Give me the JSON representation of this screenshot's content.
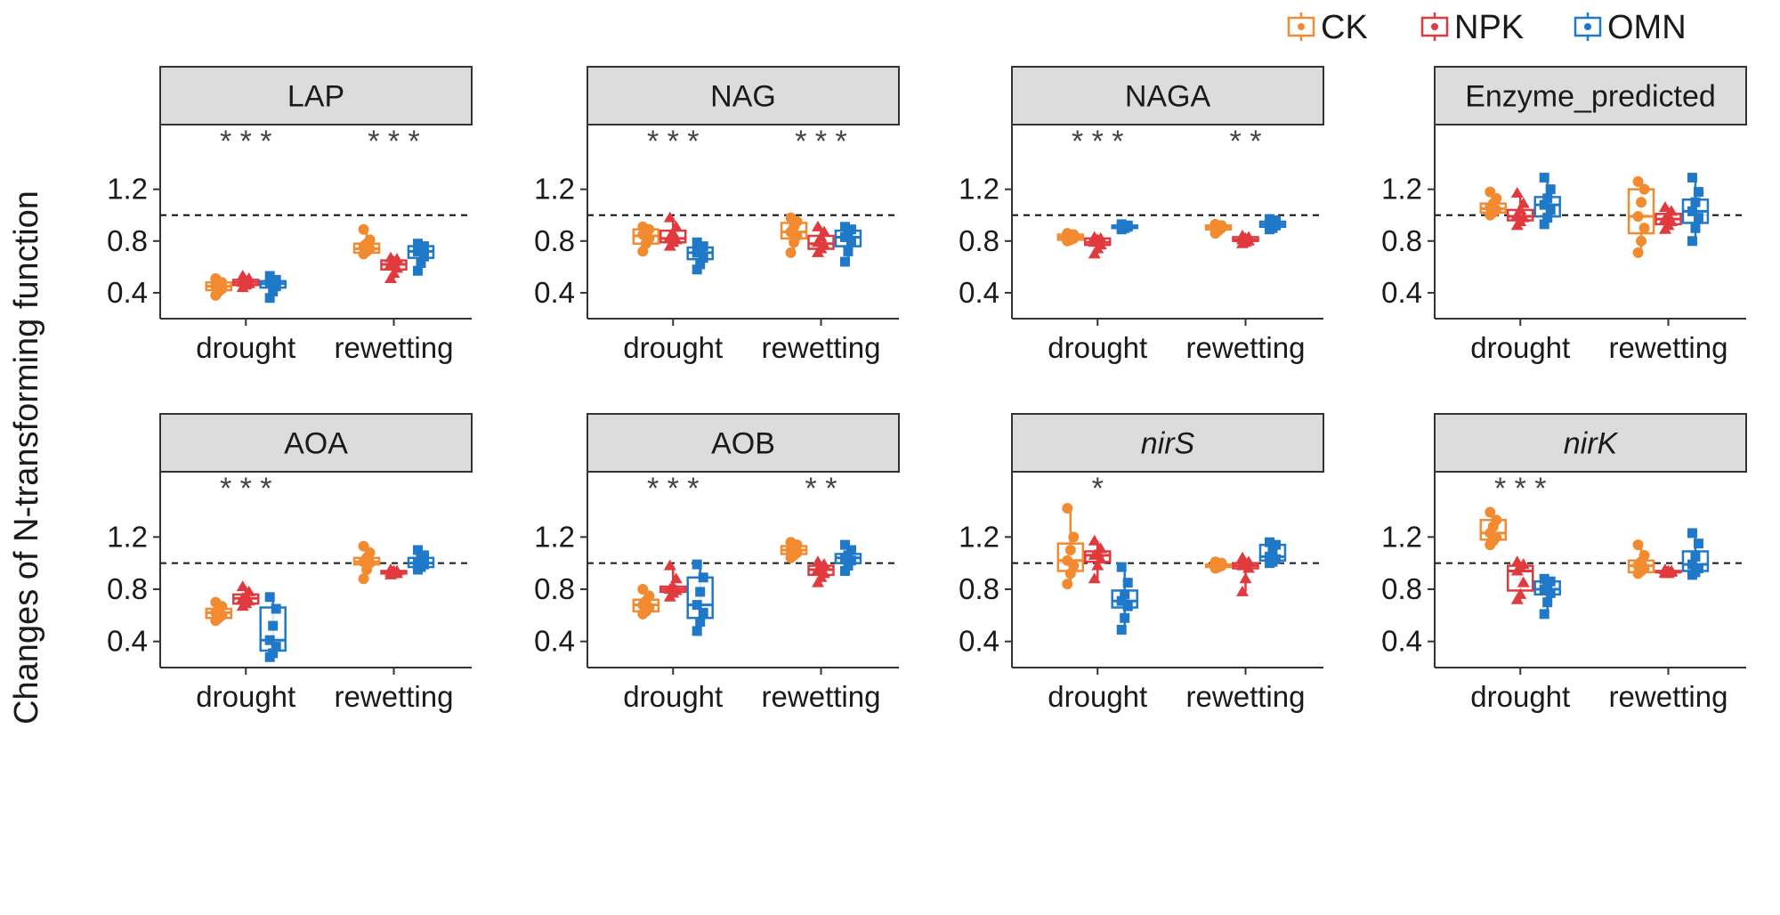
{
  "ylabel": "Changes of N-transforming function",
  "legend": {
    "placement": "top-right",
    "items": [
      {
        "label": "CK",
        "color": "#F28A30"
      },
      {
        "label": "NPK",
        "color": "#E03A3E"
      },
      {
        "label": "OMN",
        "color": "#1F78C8"
      }
    ]
  },
  "chart_data": {
    "type": "box",
    "layout": "facet grid, 2 rows x 4 columns",
    "categories": [
      "drought",
      "rewetting"
    ],
    "groups": [
      "CK",
      "NPK",
      "OMN"
    ],
    "yticks": [
      "0.4",
      "0.8",
      "1.2"
    ],
    "reference_line": 1.0,
    "ylim": [
      0.2,
      1.7
    ],
    "panels": [
      {
        "title": "LAP",
        "italic": false,
        "significance": [
          "* * *",
          "* * *"
        ],
        "boxes": [
          [
            {
              "min": 0.38,
              "q1": 0.42,
              "median": 0.45,
              "q3": 0.48,
              "max": 0.51,
              "points": [
                0.38,
                0.41,
                0.43,
                0.45,
                0.47,
                0.48,
                0.51
              ]
            },
            {
              "min": 0.44,
              "q1": 0.46,
              "median": 0.48,
              "q3": 0.5,
              "max": 0.53,
              "points": [
                0.44,
                0.46,
                0.47,
                0.48,
                0.49,
                0.51,
                0.53
              ]
            },
            {
              "min": 0.36,
              "q1": 0.44,
              "median": 0.47,
              "q3": 0.49,
              "max": 0.53,
              "points": [
                0.36,
                0.41,
                0.45,
                0.47,
                0.48,
                0.5,
                0.53
              ]
            }
          ],
          [
            {
              "min": 0.7,
              "q1": 0.71,
              "median": 0.74,
              "q3": 0.78,
              "max": 0.89,
              "points": [
                0.7,
                0.72,
                0.74,
                0.76,
                0.78,
                0.81,
                0.89
              ]
            },
            {
              "min": 0.51,
              "q1": 0.58,
              "median": 0.62,
              "q3": 0.65,
              "max": 0.67,
              "points": [
                0.51,
                0.55,
                0.59,
                0.62,
                0.64,
                0.66,
                0.67
              ]
            },
            {
              "min": 0.57,
              "q1": 0.67,
              "median": 0.72,
              "q3": 0.76,
              "max": 0.78,
              "points": [
                0.57,
                0.63,
                0.68,
                0.72,
                0.74,
                0.76,
                0.78
              ]
            }
          ]
        ]
      },
      {
        "title": "NAG",
        "italic": false,
        "significance": [
          "* * *",
          "* * *"
        ],
        "boxes": [
          [
            {
              "min": 0.72,
              "q1": 0.78,
              "median": 0.84,
              "q3": 0.89,
              "max": 0.91,
              "points": [
                0.72,
                0.78,
                0.82,
                0.85,
                0.88,
                0.89,
                0.91
              ]
            },
            {
              "min": 0.76,
              "q1": 0.79,
              "median": 0.82,
              "q3": 0.88,
              "max": 0.98,
              "points": [
                0.76,
                0.79,
                0.81,
                0.83,
                0.86,
                0.91,
                0.98
              ]
            },
            {
              "min": 0.58,
              "q1": 0.66,
              "median": 0.71,
              "q3": 0.75,
              "max": 0.79,
              "points": [
                0.58,
                0.62,
                0.67,
                0.71,
                0.73,
                0.76,
                0.79
              ]
            }
          ],
          [
            {
              "min": 0.71,
              "q1": 0.82,
              "median": 0.87,
              "q3": 0.94,
              "max": 0.98,
              "points": [
                0.71,
                0.79,
                0.84,
                0.87,
                0.91,
                0.95,
                0.98
              ]
            },
            {
              "min": 0.71,
              "q1": 0.74,
              "median": 0.78,
              "q3": 0.84,
              "max": 0.91,
              "points": [
                0.71,
                0.74,
                0.77,
                0.79,
                0.83,
                0.87,
                0.91
              ]
            },
            {
              "min": 0.64,
              "q1": 0.76,
              "median": 0.83,
              "q3": 0.88,
              "max": 0.91,
              "points": [
                0.64,
                0.72,
                0.79,
                0.83,
                0.86,
                0.89,
                0.91
              ]
            }
          ]
        ]
      },
      {
        "title": "NAGA",
        "italic": false,
        "significance": [
          "* * *",
          "* *"
        ],
        "boxes": [
          [
            {
              "min": 0.8,
              "q1": 0.81,
              "median": 0.83,
              "q3": 0.85,
              "max": 0.86,
              "points": [
                0.8,
                0.81,
                0.82,
                0.83,
                0.84,
                0.85,
                0.86
              ]
            },
            {
              "min": 0.7,
              "q1": 0.77,
              "median": 0.79,
              "q3": 0.82,
              "max": 0.83,
              "points": [
                0.7,
                0.74,
                0.77,
                0.79,
                0.81,
                0.82,
                0.83
              ]
            },
            {
              "min": 0.89,
              "q1": 0.9,
              "median": 0.91,
              "q3": 0.92,
              "max": 0.93,
              "points": [
                0.89,
                0.9,
                0.91,
                0.91,
                0.92,
                0.92,
                0.93
              ]
            }
          ],
          [
            {
              "min": 0.86,
              "q1": 0.89,
              "median": 0.91,
              "q3": 0.92,
              "max": 0.93,
              "points": [
                0.86,
                0.88,
                0.9,
                0.91,
                0.92,
                0.92,
                0.93
              ]
            },
            {
              "min": 0.78,
              "q1": 0.8,
              "median": 0.81,
              "q3": 0.83,
              "max": 0.84,
              "points": [
                0.78,
                0.79,
                0.8,
                0.81,
                0.82,
                0.83,
                0.84
              ]
            },
            {
              "min": 0.89,
              "q1": 0.91,
              "median": 0.93,
              "q3": 0.95,
              "max": 0.97,
              "points": [
                0.89,
                0.9,
                0.92,
                0.93,
                0.94,
                0.96,
                0.97
              ]
            }
          ]
        ]
      },
      {
        "title": "Enzyme_predicted",
        "italic": false,
        "significance": [
          "",
          ""
        ],
        "boxes": [
          [
            {
              "min": 1.0,
              "q1": 1.02,
              "median": 1.05,
              "q3": 1.09,
              "max": 1.18,
              "points": [
                1.0,
                1.02,
                1.04,
                1.06,
                1.09,
                1.13,
                1.18
              ]
            },
            {
              "min": 0.92,
              "q1": 0.96,
              "median": 0.99,
              "q3": 1.04,
              "max": 1.17,
              "points": [
                0.92,
                0.95,
                0.98,
                1.0,
                1.04,
                1.09,
                1.17
              ]
            },
            {
              "min": 0.93,
              "q1": 0.99,
              "median": 1.08,
              "q3": 1.14,
              "max": 1.29,
              "points": [
                0.93,
                0.98,
                1.04,
                1.08,
                1.13,
                1.2,
                1.29
              ]
            }
          ],
          [
            {
              "min": 0.71,
              "q1": 0.86,
              "median": 0.99,
              "q3": 1.2,
              "max": 1.26,
              "points": [
                0.71,
                0.8,
                0.9,
                0.99,
                1.1,
                1.2,
                1.26
              ]
            },
            {
              "min": 0.89,
              "q1": 0.93,
              "median": 0.97,
              "q3": 1.01,
              "max": 1.06,
              "points": [
                0.89,
                0.92,
                0.95,
                0.97,
                1.0,
                1.03,
                1.06
              ]
            },
            {
              "min": 0.8,
              "q1": 0.94,
              "median": 1.03,
              "q3": 1.12,
              "max": 1.29,
              "points": [
                0.8,
                0.9,
                0.98,
                1.03,
                1.1,
                1.18,
                1.29
              ]
            }
          ]
        ]
      },
      {
        "title": "AOA",
        "italic": false,
        "significance": [
          "* * *",
          ""
        ],
        "boxes": [
          [
            {
              "min": 0.56,
              "q1": 0.58,
              "median": 0.62,
              "q3": 0.65,
              "max": 0.7,
              "points": [
                0.56,
                0.58,
                0.6,
                0.62,
                0.64,
                0.67,
                0.7
              ]
            },
            {
              "min": 0.67,
              "q1": 0.69,
              "median": 0.73,
              "q3": 0.76,
              "max": 0.82,
              "points": [
                0.67,
                0.69,
                0.71,
                0.73,
                0.75,
                0.78,
                0.82
              ]
            },
            {
              "min": 0.28,
              "q1": 0.33,
              "median": 0.41,
              "q3": 0.66,
              "max": 0.74,
              "points": [
                0.28,
                0.31,
                0.36,
                0.41,
                0.52,
                0.65,
                0.74
              ]
            }
          ],
          [
            {
              "min": 0.88,
              "q1": 0.99,
              "median": 1.01,
              "q3": 1.04,
              "max": 1.13,
              "points": [
                0.88,
                0.95,
                1.0,
                1.01,
                1.04,
                1.08,
                1.13
              ]
            },
            {
              "min": 0.91,
              "q1": 0.92,
              "median": 0.93,
              "q3": 0.94,
              "max": 0.95,
              "points": [
                0.91,
                0.92,
                0.92,
                0.93,
                0.94,
                0.94,
                0.95
              ]
            },
            {
              "min": 0.95,
              "q1": 0.97,
              "median": 1.0,
              "q3": 1.04,
              "max": 1.1,
              "points": [
                0.95,
                0.97,
                0.99,
                1.0,
                1.03,
                1.06,
                1.1
              ]
            }
          ]
        ]
      },
      {
        "title": "AOB",
        "italic": false,
        "significance": [
          "* * *",
          "* *"
        ],
        "boxes": [
          [
            {
              "min": 0.61,
              "q1": 0.63,
              "median": 0.68,
              "q3": 0.72,
              "max": 0.8,
              "points": [
                0.61,
                0.63,
                0.66,
                0.68,
                0.71,
                0.75,
                0.8
              ]
            },
            {
              "min": 0.74,
              "q1": 0.78,
              "median": 0.8,
              "q3": 0.82,
              "max": 0.98,
              "points": [
                0.74,
                0.77,
                0.79,
                0.8,
                0.82,
                0.88,
                0.98
              ]
            },
            {
              "min": 0.48,
              "q1": 0.58,
              "median": 0.68,
              "q3": 0.89,
              "max": 0.99,
              "points": [
                0.48,
                0.55,
                0.62,
                0.68,
                0.78,
                0.89,
                0.99
              ]
            }
          ],
          [
            {
              "min": 1.04,
              "q1": 1.07,
              "median": 1.1,
              "q3": 1.13,
              "max": 1.16,
              "points": [
                1.04,
                1.06,
                1.08,
                1.1,
                1.12,
                1.14,
                1.16
              ]
            },
            {
              "min": 0.85,
              "q1": 0.91,
              "median": 0.95,
              "q3": 0.98,
              "max": 1.01,
              "points": [
                0.85,
                0.89,
                0.92,
                0.95,
                0.97,
                0.99,
                1.01
              ]
            },
            {
              "min": 0.94,
              "q1": 1.0,
              "median": 1.04,
              "q3": 1.07,
              "max": 1.14,
              "points": [
                0.94,
                0.98,
                1.02,
                1.04,
                1.06,
                1.1,
                1.14
              ]
            }
          ]
        ]
      },
      {
        "title": "nirS",
        "italic": true,
        "significance": [
          "*",
          ""
        ],
        "boxes": [
          [
            {
              "min": 0.84,
              "q1": 0.94,
              "median": 1.02,
              "q3": 1.15,
              "max": 1.42,
              "points": [
                0.84,
                0.92,
                0.98,
                1.02,
                1.1,
                1.2,
                1.42
              ]
            },
            {
              "min": 0.88,
              "q1": 1.01,
              "median": 1.06,
              "q3": 1.09,
              "max": 1.17,
              "points": [
                0.88,
                0.98,
                1.03,
                1.06,
                1.08,
                1.11,
                1.17
              ]
            },
            {
              "min": 0.49,
              "q1": 0.66,
              "median": 0.71,
              "q3": 0.79,
              "max": 0.97,
              "points": [
                0.49,
                0.58,
                0.67,
                0.71,
                0.76,
                0.85,
                0.97
              ]
            }
          ],
          [
            {
              "min": 0.96,
              "q1": 0.97,
              "median": 0.98,
              "q3": 0.99,
              "max": 1.01,
              "points": [
                0.96,
                0.97,
                0.98,
                0.98,
                0.99,
                1.0,
                1.01
              ]
            },
            {
              "min": 0.78,
              "q1": 0.96,
              "median": 0.98,
              "q3": 1.0,
              "max": 1.04,
              "points": [
                0.78,
                0.88,
                0.96,
                0.98,
                0.99,
                1.01,
                1.04
              ]
            },
            {
              "min": 1.0,
              "q1": 1.02,
              "median": 1.05,
              "q3": 1.14,
              "max": 1.16,
              "points": [
                1.0,
                1.01,
                1.03,
                1.05,
                1.1,
                1.14,
                1.16
              ]
            }
          ]
        ]
      },
      {
        "title": "nirK",
        "italic": true,
        "significance": [
          "* * *",
          ""
        ],
        "boxes": [
          [
            {
              "min": 1.14,
              "q1": 1.18,
              "median": 1.23,
              "q3": 1.33,
              "max": 1.39,
              "points": [
                1.14,
                1.17,
                1.2,
                1.23,
                1.28,
                1.33,
                1.39
              ]
            },
            {
              "min": 0.72,
              "q1": 0.79,
              "median": 0.94,
              "q3": 0.98,
              "max": 1.01,
              "points": [
                0.72,
                0.76,
                0.85,
                0.94,
                0.97,
                0.99,
                1.01
              ]
            },
            {
              "min": 0.61,
              "q1": 0.76,
              "median": 0.8,
              "q3": 0.86,
              "max": 0.88,
              "points": [
                0.61,
                0.7,
                0.77,
                0.8,
                0.84,
                0.86,
                0.88
              ]
            }
          ],
          [
            {
              "min": 0.92,
              "q1": 0.93,
              "median": 0.98,
              "q3": 1.02,
              "max": 1.14,
              "points": [
                0.92,
                0.94,
                0.96,
                0.98,
                1.01,
                1.06,
                1.14
              ]
            },
            {
              "min": 0.92,
              "q1": 0.93,
              "median": 0.93,
              "q3": 0.94,
              "max": 0.95,
              "points": [
                0.92,
                0.92,
                0.93,
                0.93,
                0.94,
                0.94,
                0.95
              ]
            },
            {
              "min": 0.91,
              "q1": 0.94,
              "median": 0.99,
              "q3": 1.09,
              "max": 1.23,
              "points": [
                0.91,
                0.93,
                0.96,
                0.99,
                1.05,
                1.15,
                1.23
              ]
            }
          ]
        ]
      }
    ]
  }
}
